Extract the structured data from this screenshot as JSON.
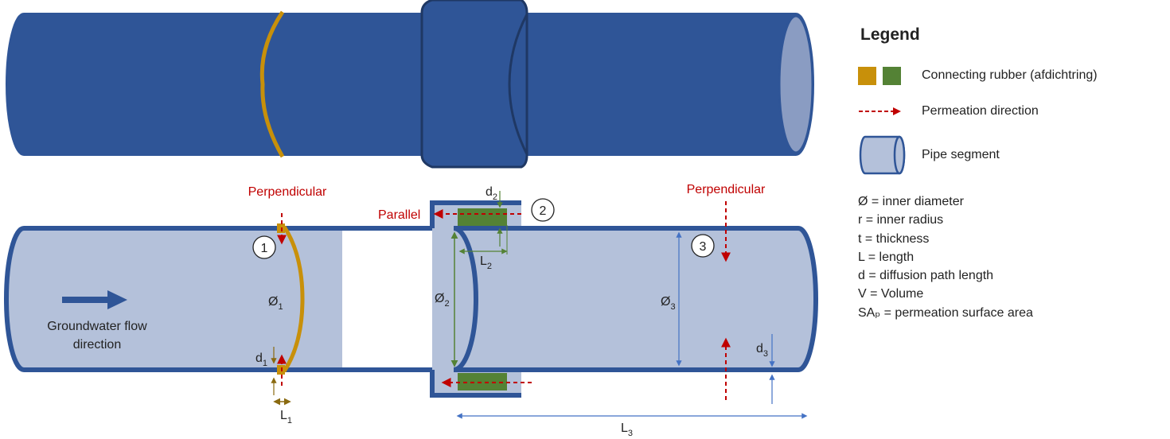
{
  "legend": {
    "title": "Legend",
    "items": [
      {
        "label": "Connecting rubber (afdichtring)",
        "icon": "rubber-swatch-icon",
        "colors": [
          "#c8900a",
          "#548235"
        ]
      },
      {
        "label": "Permeation direction",
        "icon": "red-dashed-arrow-icon",
        "color": "#c00000"
      },
      {
        "label": "Pipe segment",
        "icon": "pipe-segment-icon",
        "color": "#b4c1da"
      }
    ],
    "definitions": [
      "Ø = inner diameter",
      "r = inner radius",
      "t = thickness",
      "L = length",
      "d = diffusion path length",
      "V = Volume",
      "SAₚ = permeation surface area"
    ]
  },
  "diagram": {
    "perpendicular_1": "Perpendicular",
    "perpendicular_3": "Perpendicular",
    "parallel": "Parallel",
    "flow_label_line1": "Groundwater flow",
    "flow_label_line2": "direction",
    "marker_1": "1",
    "marker_2": "2",
    "marker_3": "3",
    "dia_1": "Ø",
    "dia_1_sub": "1",
    "dia_2": "Ø",
    "dia_2_sub": "2",
    "dia_3": "Ø",
    "dia_3_sub": "3",
    "d_1": "d",
    "d_1_sub": "1",
    "d_2": "d",
    "d_2_sub": "2",
    "d_3": "d",
    "d_3_sub": "3",
    "l_1": "L",
    "l_1_sub": "1",
    "l_2": "L",
    "l_2_sub": "2",
    "l_3": "L",
    "l_3_sub": "3"
  },
  "colors": {
    "pipe_dark": "#2f5597",
    "pipe_light": "#b4c1da",
    "pipe_end": "#8a9cc2",
    "rubber_orange": "#c8900a",
    "rubber_green": "#548235",
    "permeation_red": "#c00000",
    "dimension_blue": "#4472c4"
  }
}
